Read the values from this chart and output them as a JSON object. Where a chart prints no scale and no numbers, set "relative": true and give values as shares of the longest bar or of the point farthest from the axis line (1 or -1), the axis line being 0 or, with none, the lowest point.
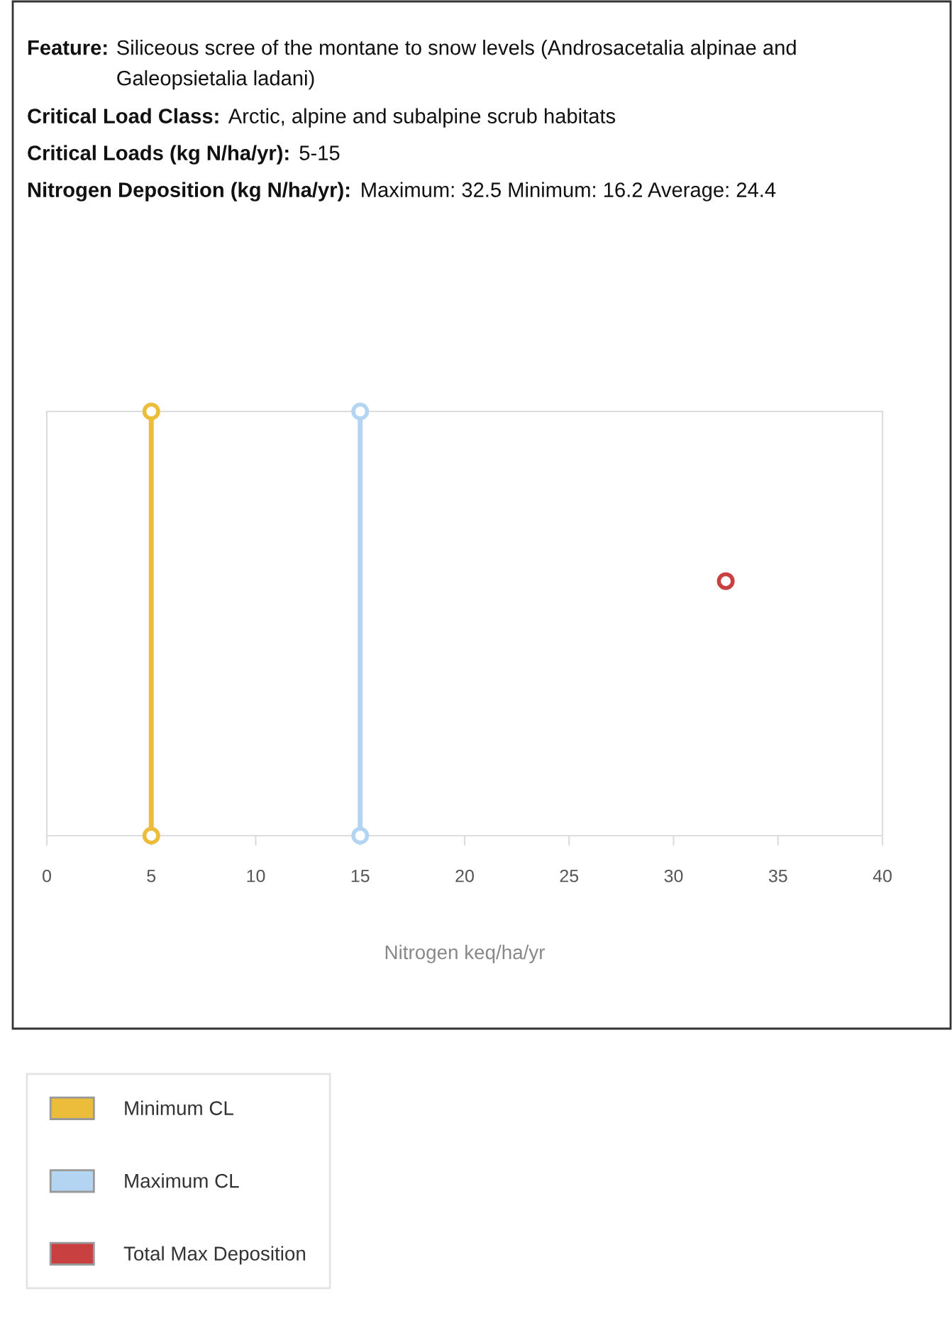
{
  "chart_data": {
    "type": "line",
    "annotations": [
      "Feature:",
      "Siliceous scree of the montane to snow levels (Androsacetalia alpinae and Galeopsietalia ladani)",
      "Critical Load Class:",
      "Arctic, alpine and subalpine scrub habitats",
      "Critical Loads (kg N/ha/yr):",
      "5-15",
      "Nitrogen Deposition (kg N/ha/yr):",
      "Maximum: 32.5 Minimum: 16.2 Average: 24.4"
    ],
    "xlabel": "Nitrogen keq/ha/yr",
    "xlim": [
      0,
      40
    ],
    "xticks": [
      0,
      5,
      10,
      15,
      20,
      25,
      30,
      35,
      40
    ],
    "relative": true,
    "tick_labels": "x",
    "marker": "circle",
    "legend": "bottom left",
    "series": [
      {
        "name": "Minimum CL",
        "color": "#ebbd3a",
        "x": [
          5,
          5
        ],
        "values": [
          0,
          1
        ]
      },
      {
        "name": "Maximum CL",
        "color": "#b3d5f2",
        "x": [
          15,
          15
        ],
        "values": [
          0,
          1
        ]
      },
      {
        "name": "Total Max Deposition",
        "color": "#c94040",
        "type": "scatter",
        "x": [
          32.5
        ],
        "values": [
          0.6
        ]
      }
    ]
  }
}
